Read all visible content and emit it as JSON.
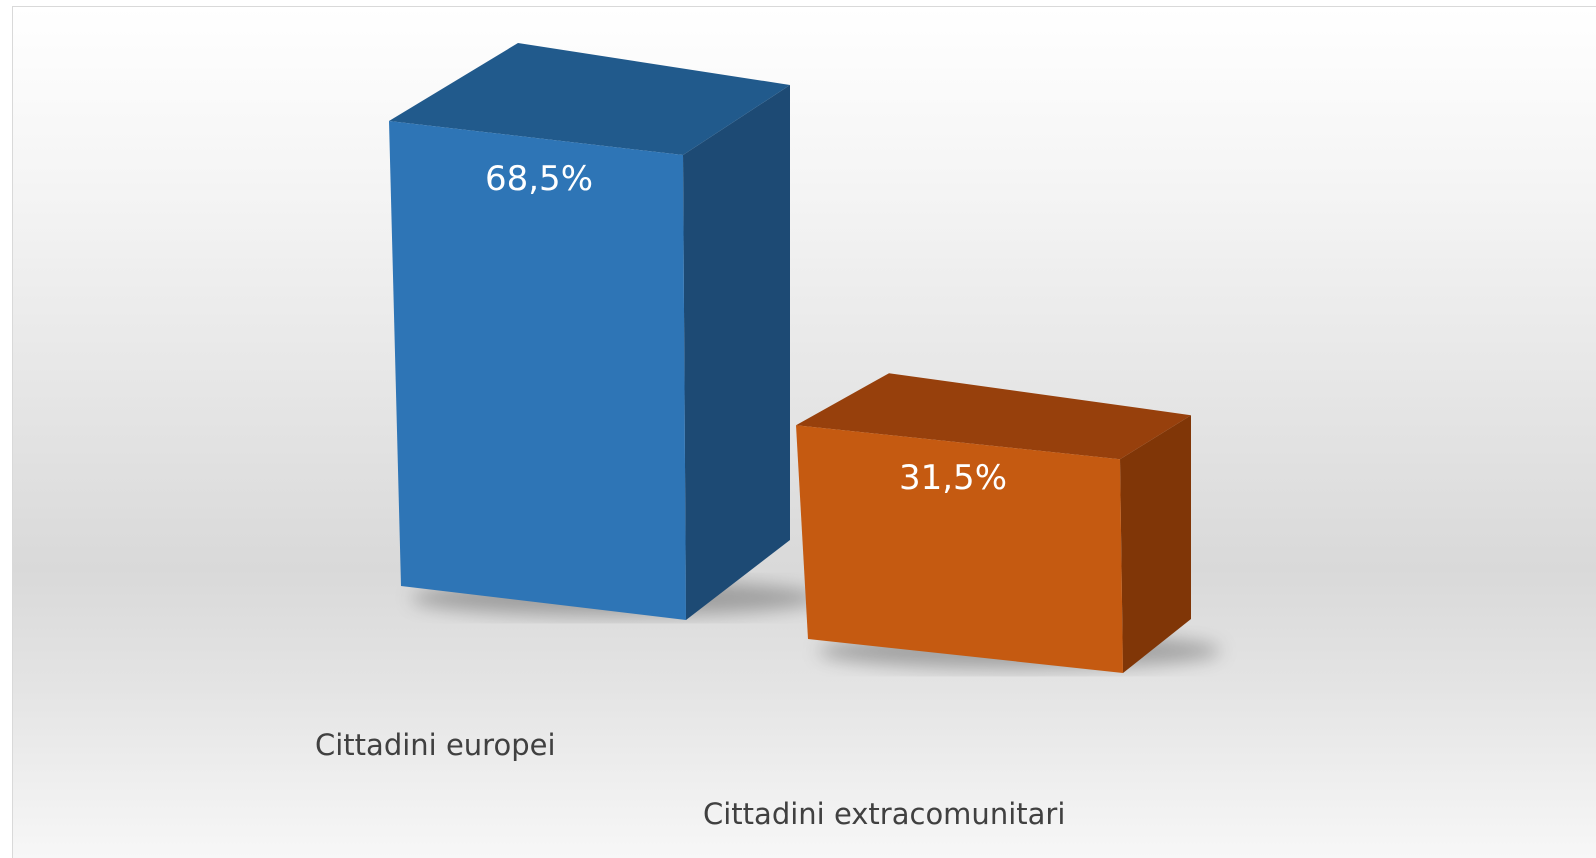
{
  "chart_data": {
    "type": "bar",
    "style": "3d-column",
    "categories": [
      "Cittadini europei",
      "Cittadini extracomunitari"
    ],
    "values": [
      68.5,
      31.5
    ],
    "data_labels": [
      "68,5%",
      "31,5%"
    ],
    "units": "%",
    "title": "",
    "xlabel": "",
    "ylabel": "",
    "ylim": [
      0,
      100
    ],
    "grid": false,
    "legend": "none",
    "colors": {
      "series": [
        {
          "front": "#2e75b6",
          "top": "#215a8c",
          "side": "#1d4a74"
        },
        {
          "front": "#c55a11",
          "top": "#97400c",
          "side": "#803607"
        }
      ],
      "label_text": "#ffffff",
      "category_text": "#404040"
    }
  }
}
